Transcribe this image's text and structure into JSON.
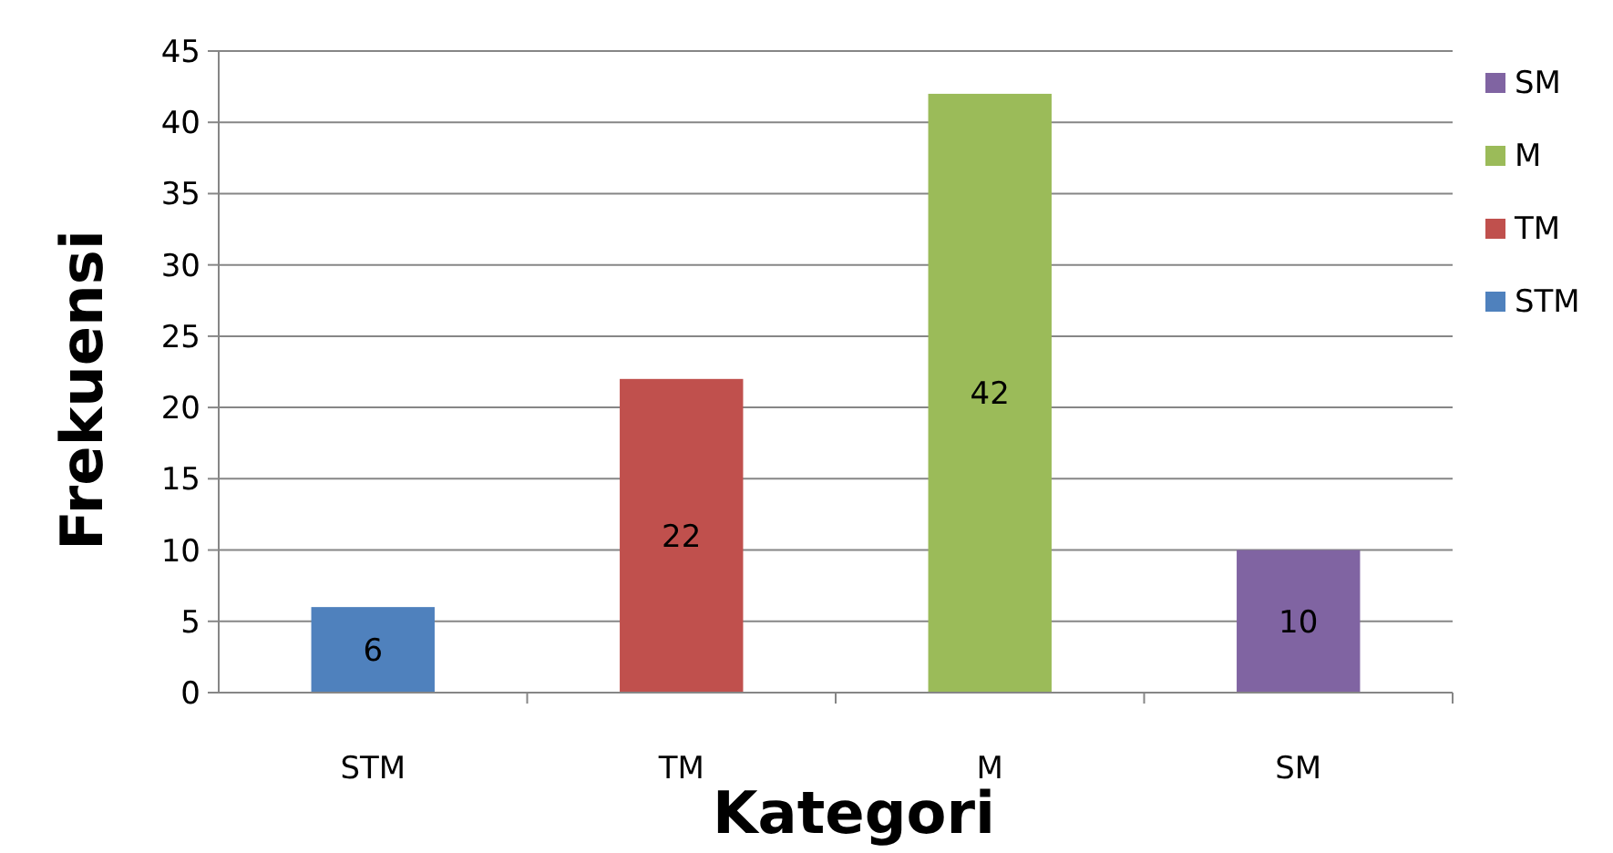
{
  "chart_data": {
    "type": "bar",
    "categories": [
      "STM",
      "TM",
      "M",
      "SM"
    ],
    "series": [
      {
        "name": "STM",
        "color": "#4f81bd",
        "values": [
          6,
          null,
          null,
          null
        ]
      },
      {
        "name": "TM",
        "color": "#c0504d",
        "values": [
          null,
          22,
          null,
          null
        ]
      },
      {
        "name": "M",
        "color": "#9bbb59",
        "values": [
          null,
          null,
          42,
          null
        ]
      },
      {
        "name": "SM",
        "color": "#8064a2",
        "values": [
          null,
          null,
          null,
          10
        ]
      }
    ],
    "stacked": true,
    "data_labels": true,
    "legend": "right",
    "grid": "y",
    "ylim": [
      0,
      45
    ],
    "yticks": [
      0,
      5,
      10,
      15,
      20,
      25,
      30,
      35,
      40,
      45
    ],
    "xlabel": "Kategori",
    "ylabel": "Frekuensi"
  }
}
